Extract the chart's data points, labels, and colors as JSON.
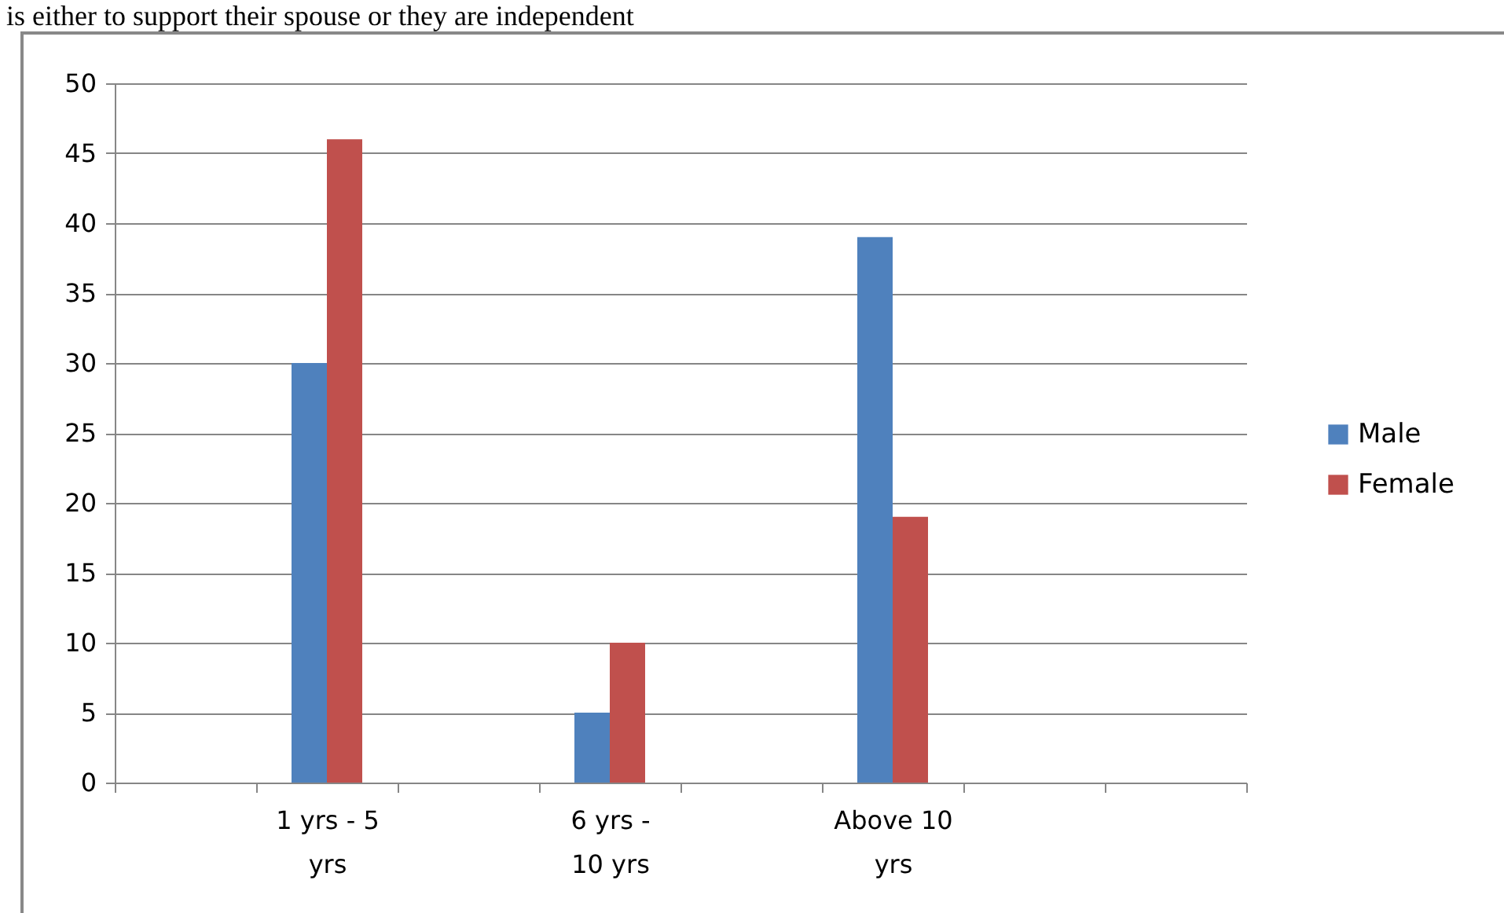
{
  "chart_data": {
    "type": "bar",
    "title": "is either to support their spouse or they are independent",
    "categories": [
      null,
      "1 yrs - 5 yrs",
      null,
      "6 yrs - 10 yrs",
      null,
      "Above 10 yrs",
      null,
      null
    ],
    "series": [
      {
        "name": "Male",
        "color": "#4f81bd",
        "values": [
          null,
          30,
          null,
          5,
          null,
          39,
          null,
          null
        ]
      },
      {
        "name": "Female",
        "color": "#c0504d",
        "values": [
          null,
          46,
          null,
          10,
          null,
          19,
          null,
          null
        ]
      }
    ],
    "ylim": [
      0,
      50
    ],
    "yticks": [
      0,
      5,
      10,
      15,
      20,
      25,
      30,
      35,
      40,
      45,
      50
    ],
    "grid": "y",
    "legend": "right"
  }
}
